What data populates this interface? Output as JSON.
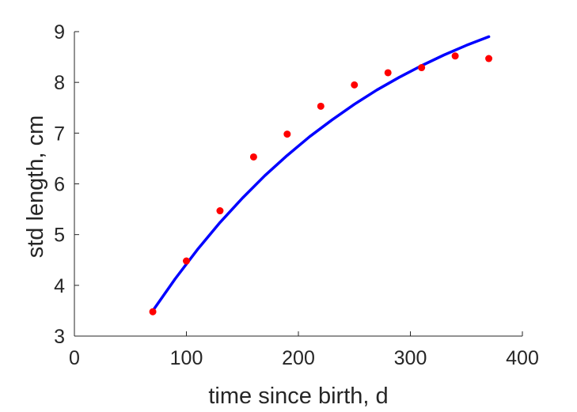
{
  "chart_data": {
    "type": "scatter",
    "xlabel": "time since birth, d",
    "ylabel": "std length, cm",
    "xlim": [
      0,
      400
    ],
    "ylim": [
      3,
      9
    ],
    "xticks": [
      0,
      100,
      200,
      300,
      400
    ],
    "yticks": [
      3,
      4,
      5,
      6,
      7,
      8,
      9
    ],
    "grid": false,
    "series": [
      {
        "kind": "points",
        "color": "#ff0000",
        "x": [
          70,
          100,
          130,
          160,
          190,
          220,
          250,
          280,
          310,
          340,
          370
        ],
        "y": [
          3.48,
          4.48,
          5.47,
          6.53,
          6.98,
          7.53,
          7.95,
          8.19,
          8.29,
          8.52,
          8.47
        ]
      },
      {
        "kind": "line",
        "color": "#0000ff",
        "x": [
          70,
          90,
          110,
          130,
          150,
          170,
          190,
          210,
          230,
          250,
          270,
          290,
          310,
          330,
          350,
          370
        ],
        "y": [
          3.5,
          4.13,
          4.71,
          5.24,
          5.72,
          6.16,
          6.56,
          6.93,
          7.26,
          7.57,
          7.85,
          8.1,
          8.33,
          8.54,
          8.73,
          8.9
        ]
      }
    ]
  }
}
